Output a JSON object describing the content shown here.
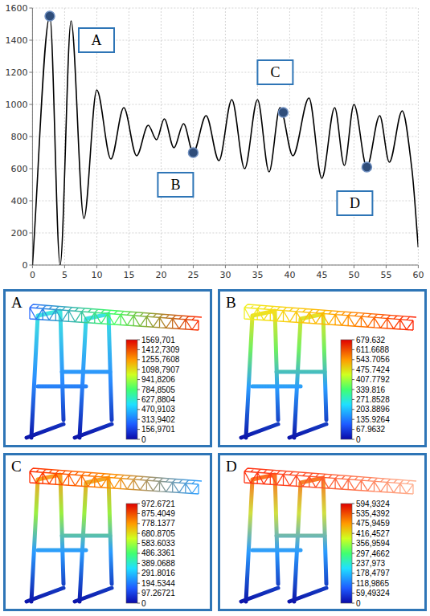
{
  "chart_data": [
    {
      "type": "line",
      "x": [
        0,
        2.7,
        4.3,
        6,
        8,
        10,
        12.2,
        14.2,
        16.2,
        18,
        19.3,
        20.5,
        22,
        23.5,
        25,
        27,
        29,
        31,
        33,
        35,
        36.8,
        38.5,
        40.5,
        43,
        45,
        47,
        48.5,
        50,
        52,
        54,
        55.5,
        57.5,
        59,
        60
      ],
      "values": [
        0,
        1550,
        0,
        1520,
        290,
        1090,
        660,
        980,
        680,
        870,
        780,
        910,
        730,
        880,
        700,
        930,
        650,
        1030,
        600,
        1030,
        580,
        980,
        680,
        1040,
        540,
        980,
        620,
        1000,
        610,
        930,
        640,
        960,
        600,
        110
      ],
      "color": "#000000",
      "xlim": [
        0,
        60
      ],
      "xticks": [
        0,
        5,
        10,
        15,
        20,
        25,
        30,
        35,
        40,
        45,
        50,
        55,
        60
      ],
      "ylim": [
        0,
        1600
      ],
      "yticks": [
        0,
        200,
        400,
        600,
        800,
        1000,
        1200,
        1400,
        1600
      ],
      "grid": true,
      "annotations": [
        {
          "text": "A",
          "x": 2.7,
          "y": 1550
        },
        {
          "text": "B",
          "x": 25,
          "y": 700
        },
        {
          "text": "C",
          "x": 39,
          "y": 950
        },
        {
          "text": "D",
          "x": 52,
          "y": 610
        }
      ]
    },
    {
      "type": "field",
      "label": "A",
      "colorbar": {
        "range": [
          0,
          1569.701
        ],
        "ticks": [
          {
            "value": 1569.701,
            "label": "1569,701"
          },
          {
            "value": 1412.7309,
            "label": "1412,7309"
          },
          {
            "value": 1255.7608,
            "label": "1255,7608"
          },
          {
            "value": 1098.7907,
            "label": "1098,7907"
          },
          {
            "value": 941.8206,
            "label": "941,8206"
          },
          {
            "value": 784.8505,
            "label": "784,8505"
          },
          {
            "value": 627.8804,
            "label": "627,8804"
          },
          {
            "value": 470.9103,
            "label": "470,9103"
          },
          {
            "value": 313.9402,
            "label": "313,9402"
          },
          {
            "value": 156.9701,
            "label": "156,9701"
          },
          0
        ]
      }
    },
    {
      "type": "field",
      "label": "B",
      "colorbar": {
        "range": [
          0,
          679.632
        ],
        "ticks": [
          679.632,
          611.6688,
          543.7056,
          475.7424,
          407.7792,
          339.816,
          271.8528,
          203.8896,
          135.9264,
          67.9632,
          0
        ]
      }
    },
    {
      "type": "field",
      "label": "C",
      "colorbar": {
        "range": [
          0,
          972.6721
        ],
        "ticks": [
          972.6721,
          875.4049,
          778.1377,
          680.8705,
          583.6033,
          486.3361,
          389.0688,
          291.8016,
          194.5344,
          97.26721,
          0
        ]
      }
    },
    {
      "type": "field",
      "label": "D",
      "colorbar": {
        "range": [
          0,
          594.9324
        ],
        "ticks": [
          {
            "value": 594.9324,
            "label": "594,9324"
          },
          {
            "value": 535.4392,
            "label": "535,4392"
          },
          {
            "value": 475.9459,
            "label": "475,9459"
          },
          {
            "value": 416.4527,
            "label": "416,4527"
          },
          {
            "value": 356.9594,
            "label": "356,9594"
          },
          {
            "value": 297.4662,
            "label": "297,4662"
          },
          {
            "value": 237.973,
            "label": "237,973"
          },
          {
            "value": 178.4797,
            "label": "178,4797"
          },
          {
            "value": 118.9865,
            "label": "118,9865"
          },
          {
            "value": 59.49324,
            "label": "59,49324"
          },
          0
        ]
      }
    }
  ]
}
